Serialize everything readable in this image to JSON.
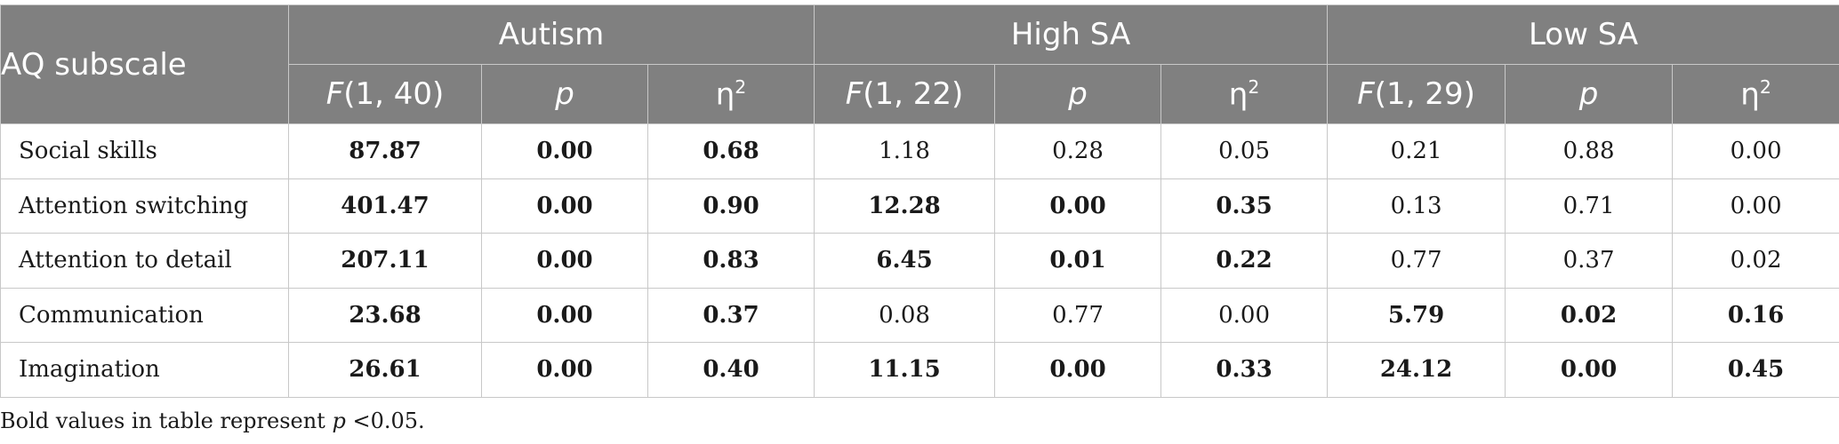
{
  "table": {
    "header": {
      "subscale": "AQ subscale",
      "groups": [
        "Autism",
        "High SA",
        "Low SA"
      ],
      "subcolumns": [
        {
          "stat": "F",
          "df": "(1, 40)"
        },
        {
          "stat": "p"
        },
        {
          "stat": "η",
          "sup": "2"
        },
        {
          "stat": "F",
          "df": "(1, 22)"
        },
        {
          "stat": "p"
        },
        {
          "stat": "η",
          "sup": "2"
        },
        {
          "stat": "F",
          "df": "(1, 29)"
        },
        {
          "stat": "p"
        },
        {
          "stat": "η",
          "sup": "2"
        }
      ]
    },
    "rows": [
      {
        "label": "Social skills",
        "values": [
          "87.87",
          "0.00",
          "0.68",
          "1.18",
          "0.28",
          "0.05",
          "0.21",
          "0.88",
          "0.00"
        ],
        "bold": [
          true,
          true,
          true,
          false,
          false,
          false,
          false,
          false,
          false
        ]
      },
      {
        "label": "Attention switching",
        "values": [
          "401.47",
          "0.00",
          "0.90",
          "12.28",
          "0.00",
          "0.35",
          "0.13",
          "0.71",
          "0.00"
        ],
        "bold": [
          true,
          true,
          true,
          true,
          true,
          true,
          false,
          false,
          false
        ]
      },
      {
        "label": "Attention to detail",
        "values": [
          "207.11",
          "0.00",
          "0.83",
          "6.45",
          "0.01",
          "0.22",
          "0.77",
          "0.37",
          "0.02"
        ],
        "bold": [
          true,
          true,
          true,
          true,
          true,
          true,
          false,
          false,
          false
        ]
      },
      {
        "label": "Communication",
        "values": [
          "23.68",
          "0.00",
          "0.37",
          "0.08",
          "0.77",
          "0.00",
          "5.79",
          "0.02",
          "0.16"
        ],
        "bold": [
          true,
          true,
          true,
          false,
          false,
          false,
          true,
          true,
          true
        ]
      },
      {
        "label": "Imagination",
        "values": [
          "26.61",
          "0.00",
          "0.40",
          "11.15",
          "0.00",
          "0.33",
          "24.12",
          "0.00",
          "0.45"
        ],
        "bold": [
          true,
          true,
          true,
          true,
          true,
          true,
          true,
          true,
          true
        ]
      }
    ]
  },
  "footnote": {
    "before": "Bold values in table represent ",
    "symbol": "p",
    "after": " <0.05."
  },
  "colors": {
    "header_bg": "#808080",
    "header_text": "#ffffff",
    "grid": "#c8c8c8"
  }
}
